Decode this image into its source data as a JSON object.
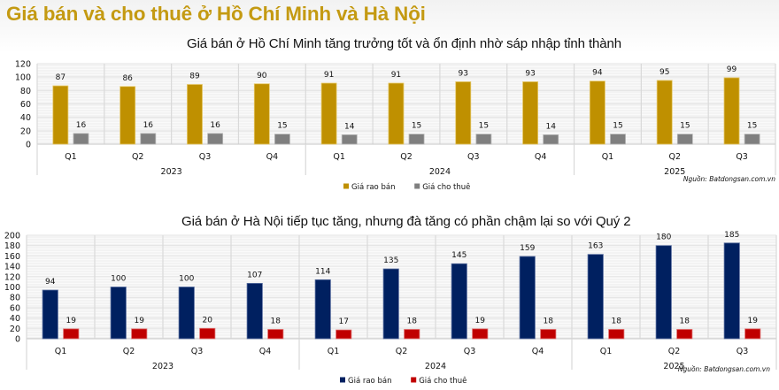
{
  "page_title": "Giá bán và cho thuê ở Hồ Chí Minh và Hà Nội",
  "chart_data": [
    {
      "type": "bar",
      "title": "Giá bán ở Hồ Chí Minh tăng trưởng tốt và ổn định nhờ sáp nhập tỉnh thành",
      "categories": [
        "Q1",
        "Q2",
        "Q3",
        "Q4",
        "Q1",
        "Q2",
        "Q3",
        "Q4",
        "Q1",
        "Q2",
        "Q3"
      ],
      "groups": [
        {
          "label": "2023",
          "count": 4
        },
        {
          "label": "2024",
          "count": 4
        },
        {
          "label": "2025",
          "count": 3
        }
      ],
      "series": [
        {
          "name": "Giá rao bán",
          "color": "#bf9000",
          "values": [
            87,
            86,
            89,
            90,
            91,
            91,
            93,
            93,
            94,
            95,
            99
          ]
        },
        {
          "name": "Giá cho thuê",
          "color": "#7f7f7f",
          "values": [
            16,
            16,
            16,
            15,
            14,
            15,
            15,
            14,
            15,
            15,
            15
          ]
        }
      ],
      "yticks": [
        0,
        20,
        40,
        60,
        80,
        100,
        120
      ],
      "ylim": [
        0,
        120
      ],
      "xlabel": "",
      "ylabel": "",
      "grid": true,
      "legend": "bottom-center",
      "source": "Nguồn: Batdongsan.com.vn"
    },
    {
      "type": "bar",
      "title": "Giá bán ở Hà Nội tiếp tục tăng, nhưng đà tăng có phần chậm lại so với Quý 2",
      "categories": [
        "Q1",
        "Q2",
        "Q3",
        "Q4",
        "Q1",
        "Q2",
        "Q3",
        "Q4",
        "Q1",
        "Q2",
        "Q3"
      ],
      "groups": [
        {
          "label": "2023",
          "count": 4
        },
        {
          "label": "2024",
          "count": 4
        },
        {
          "label": "2025",
          "count": 3
        }
      ],
      "series": [
        {
          "name": "Giá rao bán",
          "color": "#002060",
          "values": [
            94,
            100,
            100,
            107,
            114,
            135,
            145,
            159,
            163,
            180,
            185
          ]
        },
        {
          "name": "Giá cho thuê",
          "color": "#c00000",
          "values": [
            19,
            19,
            20,
            18,
            17,
            18,
            19,
            18,
            18,
            18,
            19
          ]
        }
      ],
      "yticks": [
        0,
        20,
        40,
        60,
        80,
        100,
        120,
        140,
        160,
        180,
        200
      ],
      "ylim": [
        0,
        200
      ],
      "xlabel": "",
      "ylabel": "",
      "grid": true,
      "legend": "bottom-center",
      "source": "Nguồn: Batdongsan.com.vn"
    }
  ]
}
